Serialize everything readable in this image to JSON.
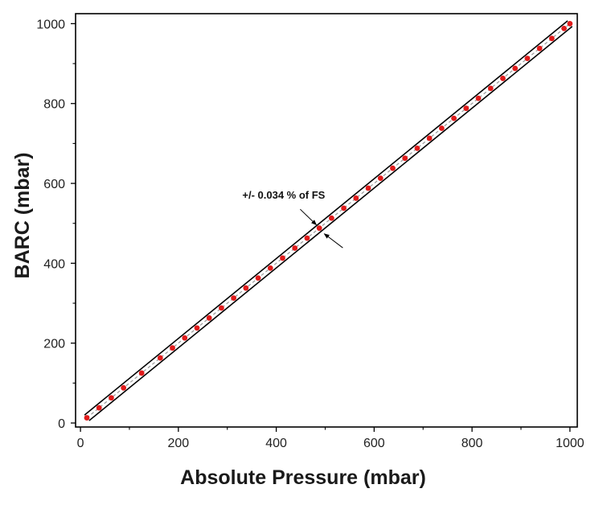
{
  "chart_data": {
    "type": "scatter",
    "xlabel": "Absolute Pressure (mbar)",
    "ylabel": "BARC (mbar)",
    "xlim": [
      -10,
      1015
    ],
    "ylim": [
      -10,
      1025
    ],
    "xticks": [
      0,
      200,
      400,
      600,
      800,
      1000
    ],
    "yticks": [
      0,
      200,
      400,
      600,
      800,
      1000
    ],
    "tick_labels_x": [
      "0",
      "200",
      "400",
      "600",
      "800",
      "1000"
    ],
    "tick_labels_y": [
      "0",
      "200",
      "400",
      "600",
      "800",
      "1000"
    ],
    "grid": false,
    "x": [
      13,
      38,
      63,
      88,
      125,
      163,
      188,
      213,
      238,
      263,
      288,
      313,
      338,
      363,
      388,
      413,
      438,
      463,
      488,
      513,
      538,
      563,
      588,
      613,
      638,
      663,
      688,
      713,
      738,
      763,
      788,
      813,
      838,
      863,
      888,
      913,
      938,
      963,
      988,
      1000
    ],
    "y": [
      13,
      38,
      63,
      88,
      125,
      163,
      188,
      213,
      238,
      263,
      288,
      313,
      338,
      363,
      388,
      413,
      438,
      463,
      488,
      513,
      538,
      563,
      588,
      613,
      638,
      663,
      688,
      713,
      738,
      763,
      788,
      813,
      838,
      863,
      888,
      913,
      938,
      963,
      988,
      1000
    ],
    "fit_line": {
      "x": [
        13,
        1000
      ],
      "y": [
        13,
        1000
      ]
    },
    "annotation": {
      "text": "+/- 0.034 % of FS",
      "at": [
        490,
        485
      ]
    },
    "colors": {
      "points": "#e01b1b",
      "band": "#000000",
      "fit": "#9a9a9a",
      "axis": "#000000"
    }
  }
}
